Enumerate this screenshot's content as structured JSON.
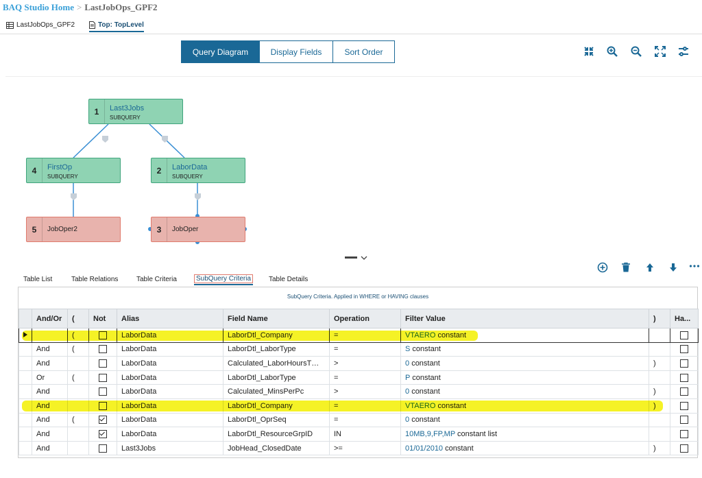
{
  "breadcrumb": {
    "home": "BAQ Studio Home",
    "separator": ">",
    "current": "LastJobOps_GPF2"
  },
  "page_tabs": [
    {
      "label": "LastJobOps_GPF2",
      "icon": "table-icon",
      "active": false
    },
    {
      "label": "Top: TopLevel",
      "icon": "document-icon",
      "active": true
    }
  ],
  "view_tabs": [
    {
      "label": "Query Diagram",
      "active": true
    },
    {
      "label": "Display Fields",
      "active": false
    },
    {
      "label": "Sort Order",
      "active": false
    }
  ],
  "top_icons": [
    "collapse-icon",
    "zoom-in-icon",
    "zoom-out-icon",
    "fit-screen-icon",
    "settings-sliders-icon"
  ],
  "diagram": {
    "nodes": [
      {
        "num": "1",
        "name": "Last3Jobs",
        "kind": "SUBQUERY",
        "color": "green"
      },
      {
        "num": "4",
        "name": "FirstOp",
        "kind": "SUBQUERY",
        "color": "green"
      },
      {
        "num": "2",
        "name": "LaborData",
        "kind": "SUBQUERY",
        "color": "green"
      },
      {
        "num": "5",
        "name": "JobOper2",
        "kind": "",
        "color": "red"
      },
      {
        "num": "3",
        "name": "JobOper",
        "kind": "",
        "color": "red"
      }
    ]
  },
  "grid_tools": [
    "add-icon",
    "delete-icon",
    "move-up-icon",
    "move-down-icon",
    "more-icon"
  ],
  "sub_tabs": [
    {
      "label": "Table List",
      "active": false
    },
    {
      "label": "Table Relations",
      "active": false
    },
    {
      "label": "Table Criteria",
      "active": false
    },
    {
      "label": "SubQuery Criteria",
      "active": true
    },
    {
      "label": "Table Details",
      "active": false
    }
  ],
  "grid": {
    "caption": "SubQuery Criteria. Applied in WHERE or HAVING clauses",
    "columns": [
      "And/Or",
      "(",
      "Not",
      "Alias",
      "Field Name",
      "Operation",
      "Filter Value",
      ")",
      "Ha..."
    ],
    "rows": [
      {
        "andor": "",
        "open": "(",
        "not": false,
        "alias": "LaborData",
        "field": "LaborDtl_Company",
        "op": "=",
        "value": "VTAERO",
        "value_suffix": "constant",
        "close": "",
        "having": false,
        "selected": true,
        "highlight": true
      },
      {
        "andor": "And",
        "open": "(",
        "not": false,
        "alias": "LaborData",
        "field": "LaborDtl_LaborType",
        "op": "=",
        "value": "S",
        "value_suffix": "constant",
        "close": "",
        "having": false
      },
      {
        "andor": "And",
        "open": "",
        "not": false,
        "alias": "LaborData",
        "field": "Calculated_LaborHoursT…",
        "op": ">",
        "value": "0",
        "value_suffix": "constant",
        "close": ")",
        "having": false
      },
      {
        "andor": "Or",
        "open": "(",
        "not": false,
        "alias": "LaborData",
        "field": "LaborDtl_LaborType",
        "op": "=",
        "value": "P",
        "value_suffix": "constant",
        "close": "",
        "having": false
      },
      {
        "andor": "And",
        "open": "",
        "not": false,
        "alias": "LaborData",
        "field": "Calculated_MinsPerPc",
        "op": ">",
        "value": "0",
        "value_suffix": "constant",
        "close": ")",
        "having": false
      },
      {
        "andor": "And",
        "open": "",
        "not": false,
        "alias": "LaborData",
        "field": "LaborDtl_Company",
        "op": "=",
        "value": "VTAERO",
        "value_suffix": "constant",
        "close": ")",
        "having": false,
        "highlight": true
      },
      {
        "andor": "And",
        "open": "(",
        "not": true,
        "alias": "LaborData",
        "field": "LaborDtl_OprSeq",
        "op": "=",
        "value": "0",
        "value_suffix": "constant",
        "close": "",
        "having": false
      },
      {
        "andor": "And",
        "open": "",
        "not": true,
        "alias": "LaborData",
        "field": "LaborDtl_ResourceGrpID",
        "op": "IN",
        "value": "10MB,9,FP,MP",
        "value_suffix": "constant list",
        "close": "",
        "having": false
      },
      {
        "andor": "And",
        "open": "",
        "not": false,
        "alias": "Last3Jobs",
        "field": "JobHead_ClosedDate",
        "op": ">=",
        "value": "01/01/2010",
        "value_suffix": "constant",
        "close": ")",
        "having": false
      }
    ]
  },
  "colors": {
    "accent": "#1a6896",
    "node_green": "#8fd3b3",
    "node_red": "#e8b3ad",
    "highlight": "#f4f000"
  }
}
